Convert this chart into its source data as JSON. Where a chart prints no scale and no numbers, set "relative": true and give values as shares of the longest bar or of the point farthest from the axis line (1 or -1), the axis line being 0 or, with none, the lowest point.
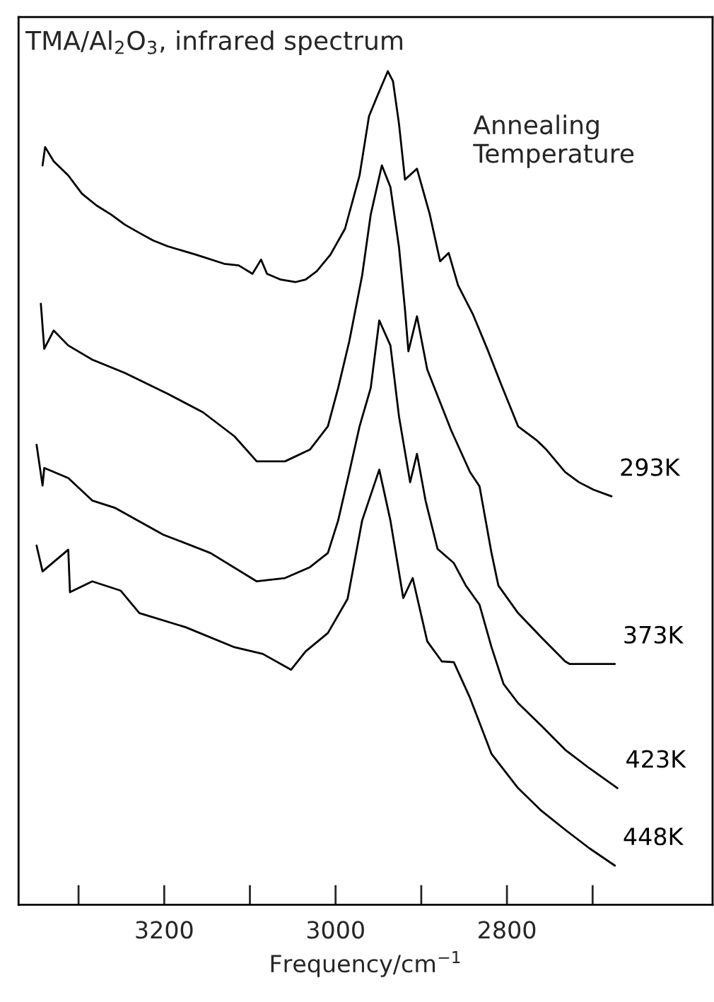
{
  "chart_data": {
    "type": "line",
    "title": "TMA/Al$_{2}$O$_{3}$, infrared spectrum",
    "xlabel": "Frequency/cm$^{−1}$",
    "annotations": [
      "Annealing\nTemperature"
    ],
    "relative": true,
    "xlim": [
      3370,
      2560
    ],
    "xticks": [
      {
        "value": 3300,
        "label": null
      },
      3200,
      {
        "value": 3100,
        "label": null
      },
      3000,
      {
        "value": 2900,
        "label": null
      },
      2800,
      {
        "value": 2700,
        "label": null
      }
    ],
    "grid": false,
    "marker": "none",
    "line_style": "solid",
    "series": [
      {
        "name": "293K",
        "color": "#000000",
        "x": [
          3342,
          3339,
          3329,
          3312,
          3296,
          3279,
          3262,
          3246,
          3229,
          3213,
          3196,
          3163,
          3130,
          3113,
          3097,
          3087,
          3080,
          3064,
          3047,
          3035,
          3022,
          3006,
          2989,
          2972,
          2961,
          2951,
          2939,
          2933,
          2926,
          2919,
          2905,
          2890,
          2878,
          2868,
          2857,
          2840,
          2823,
          2807,
          2787,
          2765,
          2754,
          2732,
          2716,
          2699,
          2678
        ],
        "values": [
          0.887,
          0.909,
          0.892,
          0.875,
          0.853,
          0.839,
          0.828,
          0.816,
          0.806,
          0.797,
          0.79,
          0.78,
          0.769,
          0.767,
          0.757,
          0.774,
          0.757,
          0.75,
          0.747,
          0.75,
          0.76,
          0.78,
          0.811,
          0.875,
          0.946,
          0.971,
          1.0,
          0.988,
          0.937,
          0.87,
          0.883,
          0.828,
          0.772,
          0.782,
          0.743,
          0.709,
          0.667,
          0.625,
          0.574,
          0.557,
          0.546,
          0.519,
          0.507,
          0.498,
          0.49
        ]
      },
      {
        "name": "373K",
        "color": "#000000",
        "x": [
          3344,
          3340,
          3329,
          3312,
          3284,
          3246,
          3196,
          3155,
          3118,
          3092,
          3059,
          3030,
          3009,
          2997,
          2984,
          2969,
          2959,
          2946,
          2936,
          2926,
          2919,
          2915,
          2905,
          2893,
          2865,
          2843,
          2832,
          2818,
          2810,
          2787,
          2760,
          2732,
          2727,
          2674
        ],
        "values": [
          0.721,
          0.667,
          0.689,
          0.671,
          0.654,
          0.638,
          0.613,
          0.591,
          0.562,
          0.532,
          0.532,
          0.546,
          0.574,
          0.62,
          0.676,
          0.755,
          0.828,
          0.887,
          0.861,
          0.789,
          0.714,
          0.664,
          0.706,
          0.642,
          0.569,
          0.519,
          0.502,
          0.422,
          0.383,
          0.35,
          0.321,
          0.292,
          0.289,
          0.289
        ]
      },
      {
        "name": "423K",
        "color": "#000000",
        "x": [
          3349,
          3342,
          3340,
          3312,
          3284,
          3257,
          3201,
          3146,
          3092,
          3059,
          3030,
          3009,
          2997,
          2984,
          2972,
          2959,
          2949,
          2936,
          2926,
          2913,
          2905,
          2895,
          2881,
          2862,
          2848,
          2832,
          2818,
          2804,
          2787,
          2760,
          2732,
          2704,
          2671
        ],
        "values": [
          0.552,
          0.503,
          0.524,
          0.512,
          0.485,
          0.476,
          0.444,
          0.422,
          0.388,
          0.392,
          0.405,
          0.422,
          0.461,
          0.519,
          0.574,
          0.62,
          0.701,
          0.671,
          0.586,
          0.507,
          0.541,
          0.485,
          0.427,
          0.41,
          0.383,
          0.36,
          0.309,
          0.265,
          0.242,
          0.215,
          0.186,
          0.164,
          0.14
        ]
      },
      {
        "name": "448K",
        "color": "#000000",
        "x": [
          3349,
          3342,
          3312,
          3310,
          3284,
          3251,
          3229,
          3175,
          3118,
          3085,
          3052,
          3035,
          3009,
          2986,
          2969,
          2949,
          2936,
          2921,
          2910,
          2893,
          2876,
          2862,
          2843,
          2818,
          2787,
          2760,
          2732,
          2704,
          2674
        ],
        "values": [
          0.431,
          0.4,
          0.426,
          0.375,
          0.388,
          0.377,
          0.35,
          0.333,
          0.309,
          0.301,
          0.282,
          0.304,
          0.326,
          0.367,
          0.461,
          0.522,
          0.461,
          0.368,
          0.392,
          0.316,
          0.292,
          0.291,
          0.248,
          0.181,
          0.14,
          0.113,
          0.09,
          0.068,
          0.047
        ]
      }
    ]
  }
}
